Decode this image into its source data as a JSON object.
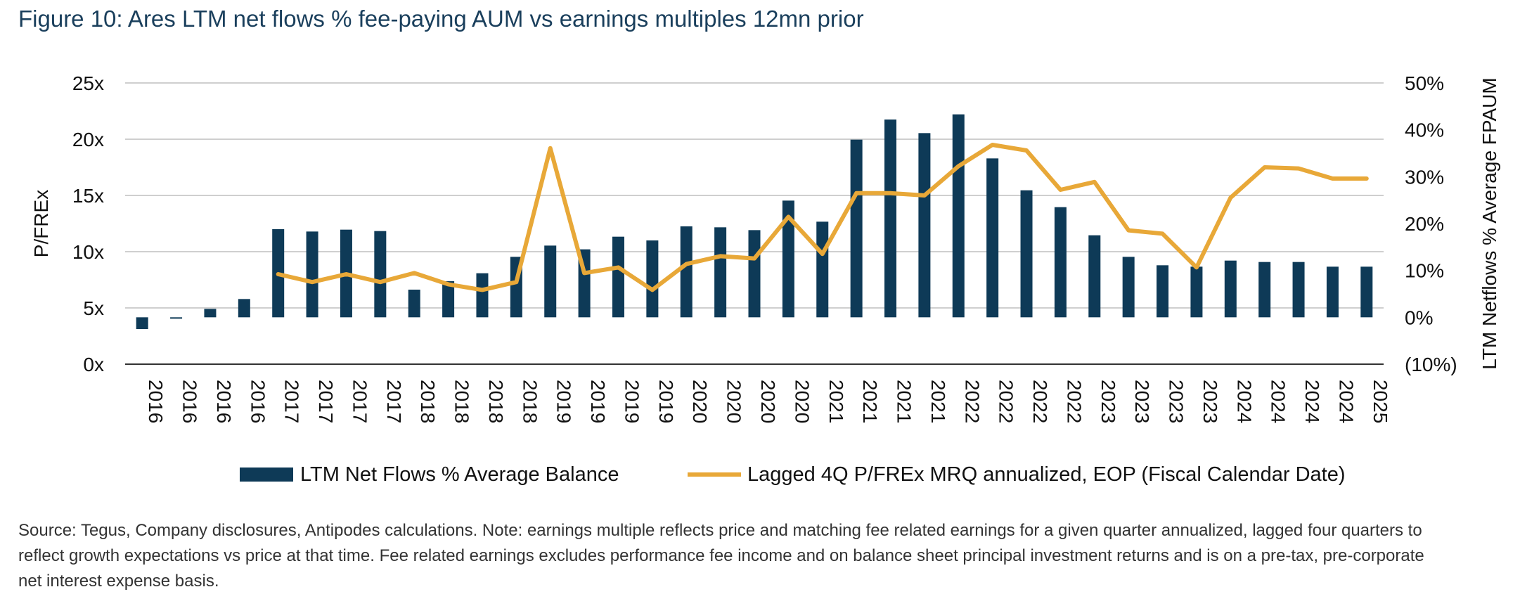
{
  "title": "Figure 10: Ares LTM net flows % fee-paying AUM vs earnings multiples 12mn prior",
  "source_note": "Source: Tegus, Company disclosures, Antipodes calculations. Note: earnings multiple reflects price and matching fee related earnings for a given quarter annualized, lagged four quarters to reflect growth expectations vs price at that time. Fee related earnings excludes performance fee income and on balance sheet principal investment returns and is on a pre-tax, pre-corporate net interest expense basis.",
  "colors": {
    "bar": "#0e3a57",
    "line": "#e8a838",
    "grid": "#bfbfbf",
    "axis": "#333333"
  },
  "chart_data": {
    "type": "bar+line",
    "categories": [
      "2016",
      "2016",
      "2016",
      "2016",
      "2017",
      "2017",
      "2017",
      "2017",
      "2018",
      "2018",
      "2018",
      "2018",
      "2019",
      "2019",
      "2019",
      "2019",
      "2020",
      "2020",
      "2020",
      "2020",
      "2021",
      "2021",
      "2021",
      "2021",
      "2022",
      "2022",
      "2022",
      "2022",
      "2023",
      "2023",
      "2023",
      "2023",
      "2024",
      "2024",
      "2024",
      "2024",
      "2025"
    ],
    "left_axis": {
      "label": "P/FREx",
      "min": 0,
      "max": 25,
      "ticks": [
        "0x",
        "5x",
        "10x",
        "15x",
        "20x",
        "25x"
      ]
    },
    "right_axis": {
      "label": "LTM Netflows % Average FPAUM",
      "min": -10,
      "max": 50,
      "ticks": [
        "(10%)",
        "0%",
        "10%",
        "20%",
        "30%",
        "40%",
        "50%"
      ]
    },
    "grid": true,
    "legend_position": "bottom",
    "series": [
      {
        "name": "LTM Net Flows % Average Balance",
        "type": "bar",
        "axis": "right",
        "values": [
          -2.5,
          -0.3,
          1.8,
          3.9,
          18.8,
          18.3,
          18.7,
          18.4,
          5.9,
          7.7,
          9.4,
          12.9,
          15.3,
          14.5,
          17.2,
          16.4,
          19.4,
          19.2,
          18.6,
          24.9,
          20.4,
          37.9,
          42.2,
          39.3,
          43.3,
          33.9,
          27.1,
          23.5,
          17.5,
          12.9,
          11.1,
          10.8,
          12.1,
          11.8,
          11.8,
          10.8,
          10.8
        ]
      },
      {
        "name": "Lagged 4Q P/FREx MRQ annualized, EOP (Fiscal Calendar Date)",
        "type": "line",
        "axis": "left",
        "values": [
          null,
          null,
          null,
          null,
          8.0,
          7.3,
          8.0,
          7.3,
          8.1,
          7.1,
          6.6,
          7.3,
          19.2,
          8.1,
          8.6,
          6.6,
          8.9,
          9.6,
          9.4,
          13.1,
          9.8,
          15.2,
          15.2,
          15.0,
          17.6,
          19.5,
          19.0,
          15.5,
          16.2,
          11.9,
          11.6,
          8.6,
          14.8,
          17.5,
          17.4,
          16.5,
          16.5
        ]
      }
    ]
  }
}
